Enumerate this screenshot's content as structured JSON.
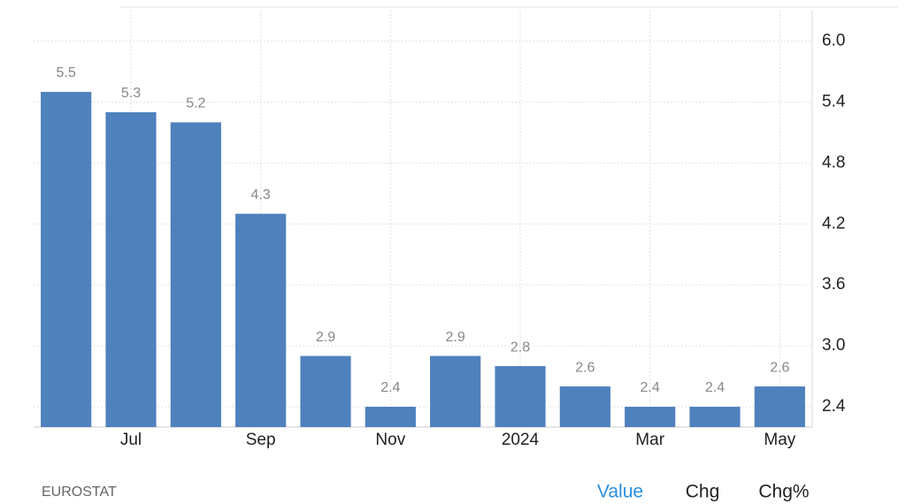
{
  "chart_data": {
    "type": "bar",
    "categories": [
      null,
      "Jul",
      null,
      "Sep",
      null,
      "Nov",
      null,
      "2024",
      null,
      "Mar",
      null,
      "May"
    ],
    "values": [
      5.5,
      5.3,
      5.2,
      4.3,
      2.9,
      2.4,
      2.9,
      2.8,
      2.6,
      2.4,
      2.4,
      2.6
    ],
    "color": "#4f81bd",
    "ylim": [
      2.2,
      6.3
    ],
    "yticks": [
      2.4,
      {
        "value": 3.0,
        "label": "3.0"
      },
      3.6,
      4.2,
      4.8,
      5.4,
      {
        "value": 6.0,
        "label": "6.0"
      }
    ],
    "grid": true
  },
  "footer": {
    "source": "EUROSTAT",
    "tabs": [
      "Value",
      "Chg",
      "Chg%"
    ]
  }
}
